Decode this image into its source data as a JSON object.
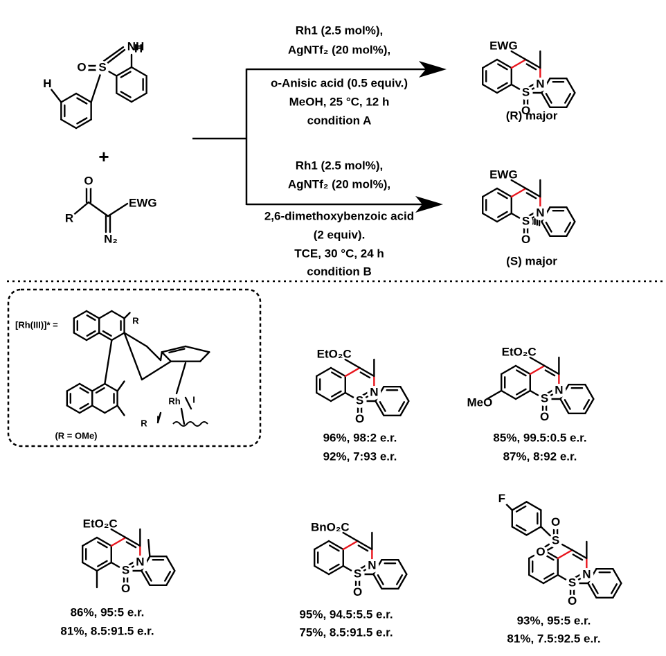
{
  "reactant_sulfoximine": {
    "atoms": [
      "O",
      "S",
      "NH",
      "H",
      "H"
    ]
  },
  "plus": "+",
  "reactant_diazo": {
    "atoms": [
      "O",
      "R",
      "EWG",
      "N₂"
    ]
  },
  "condition_a": {
    "lines": [
      "Rh1 (2.5 mol%),",
      "AgNTf₂ (20 mol%),",
      "o-Anisic acid (0.5 equiv.)",
      "MeOH, 25 °C, 12 h",
      "condition A"
    ]
  },
  "condition_b": {
    "lines": [
      "Rh1 (2.5 mol%),",
      "AgNTf₂ (20 mol%),",
      "2,6-dimethoxybenzoic acid",
      "(2 equiv).",
      "TCE, 30 °C, 24 h",
      "condition B"
    ]
  },
  "product_r": {
    "substituent": "EWG",
    "atoms": [
      "N",
      "S",
      "O"
    ],
    "caption": "(R) major"
  },
  "product_s": {
    "substituent": "EWG",
    "atoms": [
      "N",
      "S",
      "O"
    ],
    "caption": "(S) major"
  },
  "catalyst": {
    "label": "[Rh(III)]* =",
    "atoms": [
      "R",
      "R",
      "Rh",
      "I",
      "I"
    ],
    "note": "(R = OMe)"
  },
  "examples": [
    {
      "substituent": "EtO₂C",
      "atoms": [
        "N",
        "S",
        "O"
      ],
      "results": [
        "96%, 98:2 e.r.",
        "92%, 7:93 e.r."
      ]
    },
    {
      "substituent": "EtO₂C",
      "ring_substituent": "MeO",
      "atoms": [
        "N",
        "S",
        "O"
      ],
      "results": [
        "85%, 99.5:0.5 e.r.",
        "87%, 8:92 e.r."
      ]
    },
    {
      "substituent": "EtO₂C",
      "atoms": [
        "N",
        "S",
        "O"
      ],
      "results": [
        "86%, 95:5 e.r.",
        "81%, 8.5:91.5 e.r."
      ]
    },
    {
      "substituent": "BnO₂C",
      "atoms": [
        "N",
        "S",
        "O"
      ],
      "results": [
        "95%, 94.5:5.5 e.r.",
        "75%, 8.5:91.5 e.r."
      ]
    },
    {
      "sulfonyl": [
        "F",
        "O",
        "S",
        "O"
      ],
      "atoms": [
        "N",
        "S",
        "O"
      ],
      "results": [
        "93%, 95:5 e.r.",
        "81%, 7.5:92.5 e.r."
      ]
    }
  ]
}
